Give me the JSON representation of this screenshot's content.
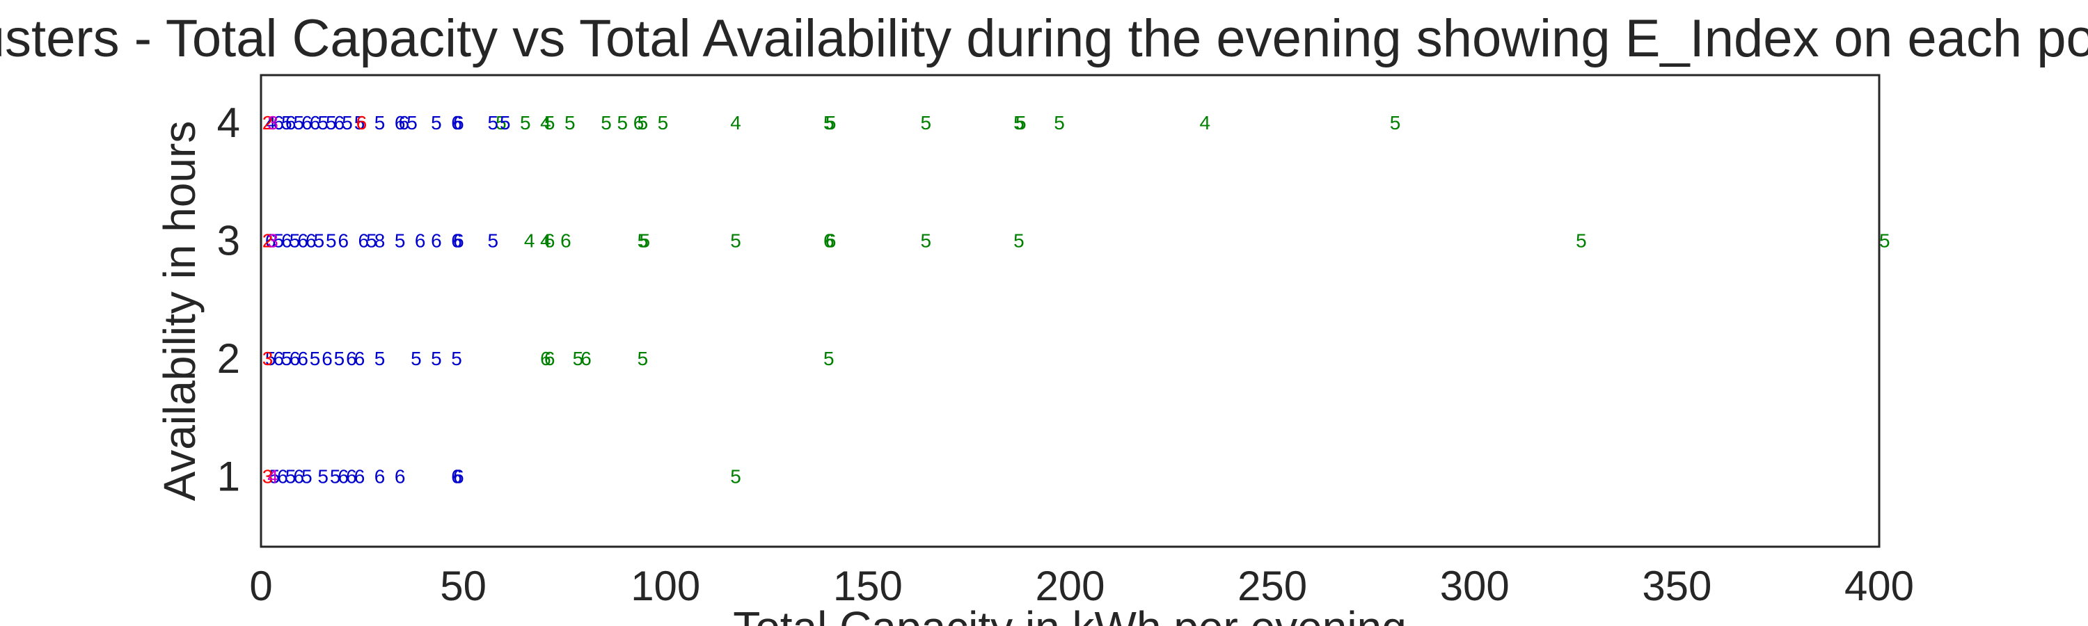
{
  "chart_data": {
    "type": "scatter",
    "title": "Clusters - Total Capacity  vs Total Availability during the evening showing E_Index on each point",
    "xlabel": "Total Capacity in kWh per evening",
    "ylabel": "Availability in hours",
    "xlim": [
      0,
      400
    ],
    "ylim": [
      0.4,
      4.4
    ],
    "xticks": [
      0,
      50,
      100,
      150,
      200,
      250,
      300,
      350,
      400
    ],
    "yticks": [
      1,
      2,
      3,
      4
    ],
    "grid": false,
    "legend": "none",
    "marker": "text-label",
    "colors": {
      "green": "#008000",
      "blue": "#0000cc",
      "red": "#ff0000",
      "magenta": "#cc00cc",
      "axis": "#262626"
    },
    "series": [
      {
        "color": "green",
        "points": [
          {
            "x": 58,
            "y": 4,
            "label": "5"
          },
          {
            "x": 64,
            "y": 4,
            "label": "5"
          },
          {
            "x": 69,
            "y": 4,
            "label": "4"
          },
          {
            "x": 70,
            "y": 4,
            "label": "5"
          },
          {
            "x": 75,
            "y": 4,
            "label": "5"
          },
          {
            "x": 84,
            "y": 4,
            "label": "5"
          },
          {
            "x": 88,
            "y": 4,
            "label": "5"
          },
          {
            "x": 92,
            "y": 4,
            "label": "6"
          },
          {
            "x": 93,
            "y": 4,
            "label": "5"
          },
          {
            "x": 98,
            "y": 4,
            "label": "5"
          },
          {
            "x": 116,
            "y": 4,
            "label": "4"
          },
          {
            "x": 139,
            "y": 4,
            "label": "5"
          },
          {
            "x": 139.5,
            "y": 4,
            "label": "5"
          },
          {
            "x": 163,
            "y": 4,
            "label": "5"
          },
          {
            "x": 186,
            "y": 4,
            "label": "5"
          },
          {
            "x": 186.5,
            "y": 4,
            "label": "5"
          },
          {
            "x": 196,
            "y": 4,
            "label": "5"
          },
          {
            "x": 232,
            "y": 4,
            "label": "4"
          },
          {
            "x": 279,
            "y": 4,
            "label": "5"
          },
          {
            "x": 65,
            "y": 3,
            "label": "4"
          },
          {
            "x": 69,
            "y": 3,
            "label": "4"
          },
          {
            "x": 70,
            "y": 3,
            "label": "6"
          },
          {
            "x": 74,
            "y": 3,
            "label": "6"
          },
          {
            "x": 93,
            "y": 3,
            "label": "5"
          },
          {
            "x": 93.5,
            "y": 3,
            "label": "5"
          },
          {
            "x": 116,
            "y": 3,
            "label": "5"
          },
          {
            "x": 139,
            "y": 3,
            "label": "6"
          },
          {
            "x": 139.5,
            "y": 3,
            "label": "6"
          },
          {
            "x": 163,
            "y": 3,
            "label": "5"
          },
          {
            "x": 186,
            "y": 3,
            "label": "5"
          },
          {
            "x": 325,
            "y": 3,
            "label": "5"
          },
          {
            "x": 400,
            "y": 3,
            "label": "5"
          },
          {
            "x": 69,
            "y": 2,
            "label": "6"
          },
          {
            "x": 70,
            "y": 2,
            "label": "6"
          },
          {
            "x": 77,
            "y": 2,
            "label": "5"
          },
          {
            "x": 79,
            "y": 2,
            "label": "6"
          },
          {
            "x": 93,
            "y": 2,
            "label": "5"
          },
          {
            "x": 139,
            "y": 2,
            "label": "5"
          },
          {
            "x": 116,
            "y": 1,
            "label": "5"
          }
        ]
      },
      {
        "color": "blue",
        "points": [
          {
            "x": 1,
            "y": 4,
            "label": "4"
          },
          {
            "x": 3,
            "y": 4,
            "label": "6"
          },
          {
            "x": 5,
            "y": 4,
            "label": "5"
          },
          {
            "x": 6,
            "y": 4,
            "label": "6"
          },
          {
            "x": 8,
            "y": 4,
            "label": "5"
          },
          {
            "x": 10,
            "y": 4,
            "label": "6"
          },
          {
            "x": 12,
            "y": 4,
            "label": "6"
          },
          {
            "x": 14,
            "y": 4,
            "label": "5"
          },
          {
            "x": 16,
            "y": 4,
            "label": "5"
          },
          {
            "x": 18,
            "y": 4,
            "label": "6"
          },
          {
            "x": 20,
            "y": 4,
            "label": "5"
          },
          {
            "x": 23,
            "y": 4,
            "label": "5"
          },
          {
            "x": 28,
            "y": 4,
            "label": "5"
          },
          {
            "x": 33,
            "y": 4,
            "label": "6"
          },
          {
            "x": 34,
            "y": 4,
            "label": "6"
          },
          {
            "x": 36,
            "y": 4,
            "label": "5"
          },
          {
            "x": 42,
            "y": 4,
            "label": "5"
          },
          {
            "x": 47,
            "y": 4,
            "label": "6"
          },
          {
            "x": 47.5,
            "y": 4,
            "label": "6"
          },
          {
            "x": 56,
            "y": 4,
            "label": "5"
          },
          {
            "x": 59,
            "y": 4,
            "label": "5"
          },
          {
            "x": 1,
            "y": 3,
            "label": "6"
          },
          {
            "x": 3,
            "y": 3,
            "label": "5"
          },
          {
            "x": 5,
            "y": 3,
            "label": "6"
          },
          {
            "x": 7,
            "y": 3,
            "label": "5"
          },
          {
            "x": 9,
            "y": 3,
            "label": "6"
          },
          {
            "x": 11,
            "y": 3,
            "label": "6"
          },
          {
            "x": 13,
            "y": 3,
            "label": "5"
          },
          {
            "x": 16,
            "y": 3,
            "label": "5"
          },
          {
            "x": 19,
            "y": 3,
            "label": "6"
          },
          {
            "x": 24,
            "y": 3,
            "label": "6"
          },
          {
            "x": 26,
            "y": 3,
            "label": "5"
          },
          {
            "x": 28,
            "y": 3,
            "label": "8"
          },
          {
            "x": 33,
            "y": 3,
            "label": "5"
          },
          {
            "x": 38,
            "y": 3,
            "label": "6"
          },
          {
            "x": 42,
            "y": 3,
            "label": "6"
          },
          {
            "x": 47,
            "y": 3,
            "label": "6"
          },
          {
            "x": 47.5,
            "y": 3,
            "label": "6"
          },
          {
            "x": 56,
            "y": 3,
            "label": "5"
          },
          {
            "x": 1,
            "y": 2,
            "label": "5"
          },
          {
            "x": 3,
            "y": 2,
            "label": "6"
          },
          {
            "x": 5,
            "y": 2,
            "label": "5"
          },
          {
            "x": 7,
            "y": 2,
            "label": "6"
          },
          {
            "x": 9,
            "y": 2,
            "label": "6"
          },
          {
            "x": 12,
            "y": 2,
            "label": "5"
          },
          {
            "x": 15,
            "y": 2,
            "label": "6"
          },
          {
            "x": 18,
            "y": 2,
            "label": "5"
          },
          {
            "x": 21,
            "y": 2,
            "label": "6"
          },
          {
            "x": 23,
            "y": 2,
            "label": "6"
          },
          {
            "x": 28,
            "y": 2,
            "label": "5"
          },
          {
            "x": 37,
            "y": 2,
            "label": "5"
          },
          {
            "x": 42,
            "y": 2,
            "label": "5"
          },
          {
            "x": 47,
            "y": 2,
            "label": "5"
          },
          {
            "x": 2,
            "y": 1,
            "label": "5"
          },
          {
            "x": 4,
            "y": 1,
            "label": "6"
          },
          {
            "x": 6,
            "y": 1,
            "label": "5"
          },
          {
            "x": 8,
            "y": 1,
            "label": "6"
          },
          {
            "x": 10,
            "y": 1,
            "label": "5"
          },
          {
            "x": 14,
            "y": 1,
            "label": "5"
          },
          {
            "x": 17,
            "y": 1,
            "label": "5"
          },
          {
            "x": 19,
            "y": 1,
            "label": "6"
          },
          {
            "x": 21,
            "y": 1,
            "label": "6"
          },
          {
            "x": 23,
            "y": 1,
            "label": "6"
          },
          {
            "x": 28,
            "y": 1,
            "label": "6"
          },
          {
            "x": 33,
            "y": 1,
            "label": "6"
          },
          {
            "x": 47,
            "y": 1,
            "label": "6"
          },
          {
            "x": 47.5,
            "y": 1,
            "label": "6"
          }
        ]
      },
      {
        "color": "red",
        "points": [
          {
            "x": 0.3,
            "y": 4,
            "label": "2"
          },
          {
            "x": 23.5,
            "y": 4,
            "label": "6"
          },
          {
            "x": 0.3,
            "y": 3,
            "label": "2"
          },
          {
            "x": 0.3,
            "y": 2,
            "label": "3"
          },
          {
            "x": 0.3,
            "y": 1,
            "label": "3"
          }
        ]
      },
      {
        "color": "magenta",
        "points": [
          {
            "x": 1.6,
            "y": 4,
            "label": "3"
          },
          {
            "x": 1.6,
            "y": 3,
            "label": "3"
          },
          {
            "x": 1.6,
            "y": 1,
            "label": "4"
          }
        ]
      }
    ]
  }
}
